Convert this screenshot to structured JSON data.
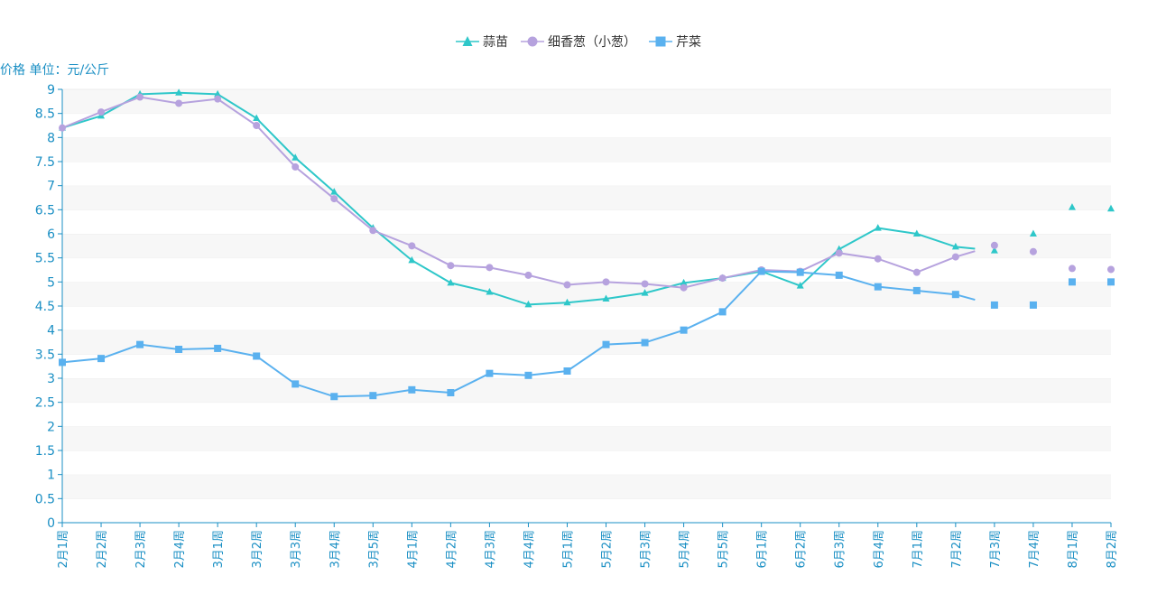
{
  "legend": {
    "items": [
      {
        "name": "蒜苗",
        "color": "#2ec7c9",
        "marker": "triangle"
      },
      {
        "name": "细香葱（小葱）",
        "color": "#b6a2de",
        "marker": "circle"
      },
      {
        "name": "芹菜",
        "color": "#5ab1ef",
        "marker": "square"
      }
    ]
  },
  "axis_unit_label": "价格 单位：元/公斤",
  "chart_data": {
    "type": "line",
    "title": "",
    "ylabel": "价格 单位：元/公斤",
    "ylim": [
      0,
      9
    ],
    "yticks": [
      "0",
      "0.5",
      "1",
      "1.5",
      "2",
      "2.5",
      "3",
      "3.5",
      "4",
      "4.5",
      "5",
      "5.5",
      "6",
      "6.5",
      "7",
      "7.5",
      "8",
      "8.5",
      "9"
    ],
    "grid": "horizontal-bands",
    "legend_position": "top-center",
    "categories": [
      "2月1周",
      "2月2周",
      "2月3周",
      "2月4周",
      "3月1周",
      "3月2周",
      "3月3周",
      "3月4周",
      "3月5周",
      "4月1周",
      "4月2周",
      "4月3周",
      "4月4周",
      "5月1周",
      "5月2周",
      "5月3周",
      "5月4周",
      "5月5周",
      "6月1周",
      "6月2周",
      "6月3周",
      "6月4周",
      "7月1周",
      "7月2周",
      "7月3周",
      "7月4周",
      "8月1周",
      "8月2周"
    ],
    "series": [
      {
        "name": "蒜苗",
        "color": "#2ec7c9",
        "marker": "triangle",
        "values": [
          8.2,
          8.45,
          8.9,
          8.93,
          8.9,
          8.4,
          7.58,
          6.87,
          6.12,
          5.45,
          4.98,
          4.79,
          4.53,
          4.57,
          4.65,
          4.77,
          4.98,
          5.08,
          5.22,
          4.92,
          5.68,
          6.12,
          6.0,
          5.73,
          5.65,
          6.0,
          6.55,
          6.52
        ],
        "line_until_index": 23
      },
      {
        "name": "细香葱（小葱）",
        "color": "#b6a2de",
        "marker": "circle",
        "values": [
          8.2,
          8.53,
          8.84,
          8.71,
          8.8,
          8.25,
          7.39,
          6.73,
          6.07,
          5.75,
          5.34,
          5.3,
          5.14,
          4.94,
          5.0,
          4.96,
          4.88,
          5.08,
          5.25,
          5.22,
          5.6,
          5.48,
          5.2,
          5.52,
          5.76,
          5.63,
          5.28,
          5.26
        ],
        "line_until_index": 23
      },
      {
        "name": "芹菜",
        "color": "#5ab1ef",
        "marker": "square",
        "values": [
          3.33,
          3.41,
          3.7,
          3.6,
          3.62,
          3.46,
          2.88,
          2.62,
          2.64,
          2.76,
          2.7,
          3.1,
          3.06,
          3.15,
          3.7,
          3.74,
          4.0,
          4.38,
          5.22,
          5.2,
          5.14,
          4.9,
          4.82,
          4.74,
          4.52,
          4.52,
          5.0,
          5.0
        ],
        "line_until_index": 23
      }
    ]
  }
}
